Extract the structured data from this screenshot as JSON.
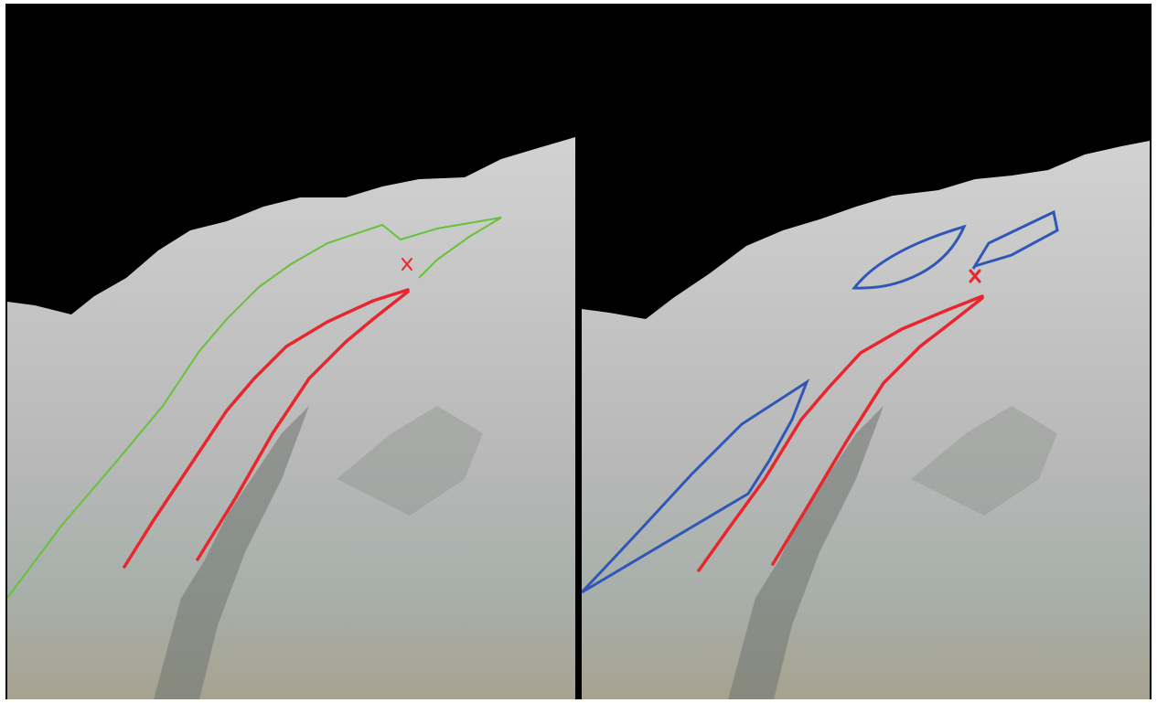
{
  "scene": {
    "description_panels": [
      "left",
      "right"
    ],
    "colors": {
      "sky": "#000000",
      "terrain_top": "#c9c9c9",
      "terrain_bottom": "#9aa59a",
      "route_red": "#e8262d",
      "region_green": "#67c23a",
      "region_blue": "#2f58b6"
    }
  }
}
